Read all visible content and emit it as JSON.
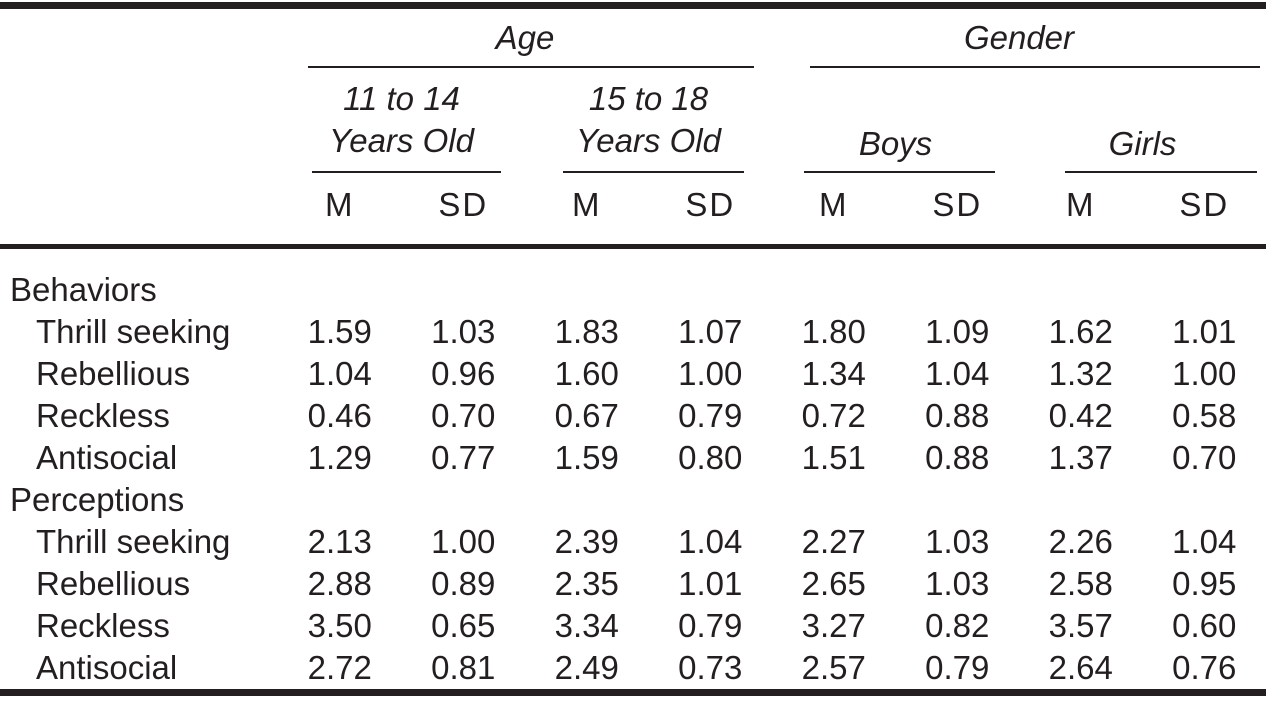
{
  "colors": {
    "text": "#231f20",
    "rule": "#231f20",
    "background": "#ffffff"
  },
  "table": {
    "column_groups": {
      "age": {
        "title": "Age",
        "sub1_line1": "11 to 14",
        "sub1_line2": "Years Old",
        "sub2_line1": "15 to 18",
        "sub2_line2": "Years Old"
      },
      "gender": {
        "title": "Gender",
        "sub1": "Boys",
        "sub2": "Girls"
      }
    },
    "stat_headers": {
      "mean": "M",
      "sd": "SD"
    },
    "sections": [
      {
        "label": "Behaviors",
        "rows": [
          {
            "label": "Thrill seeking",
            "values": [
              "1.59",
              "1.03",
              "1.83",
              "1.07",
              "1.80",
              "1.09",
              "1.62",
              "1.01"
            ]
          },
          {
            "label": "Rebellious",
            "values": [
              "1.04",
              "0.96",
              "1.60",
              "1.00",
              "1.34",
              "1.04",
              "1.32",
              "1.00"
            ]
          },
          {
            "label": "Reckless",
            "values": [
              "0.46",
              "0.70",
              "0.67",
              "0.79",
              "0.72",
              "0.88",
              "0.42",
              "0.58"
            ]
          },
          {
            "label": "Antisocial",
            "values": [
              "1.29",
              "0.77",
              "1.59",
              "0.80",
              "1.51",
              "0.88",
              "1.37",
              "0.70"
            ]
          }
        ]
      },
      {
        "label": "Perceptions",
        "rows": [
          {
            "label": "Thrill seeking",
            "values": [
              "2.13",
              "1.00",
              "2.39",
              "1.04",
              "2.27",
              "1.03",
              "2.26",
              "1.04"
            ]
          },
          {
            "label": "Rebellious",
            "values": [
              "2.88",
              "0.89",
              "2.35",
              "1.01",
              "2.65",
              "1.03",
              "2.58",
              "0.95"
            ]
          },
          {
            "label": "Reckless",
            "values": [
              "3.50",
              "0.65",
              "3.34",
              "0.79",
              "3.27",
              "0.82",
              "3.57",
              "0.60"
            ]
          },
          {
            "label": "Antisocial",
            "values": [
              "2.72",
              "0.81",
              "2.49",
              "0.73",
              "2.57",
              "0.79",
              "2.64",
              "0.76"
            ]
          }
        ]
      }
    ]
  }
}
